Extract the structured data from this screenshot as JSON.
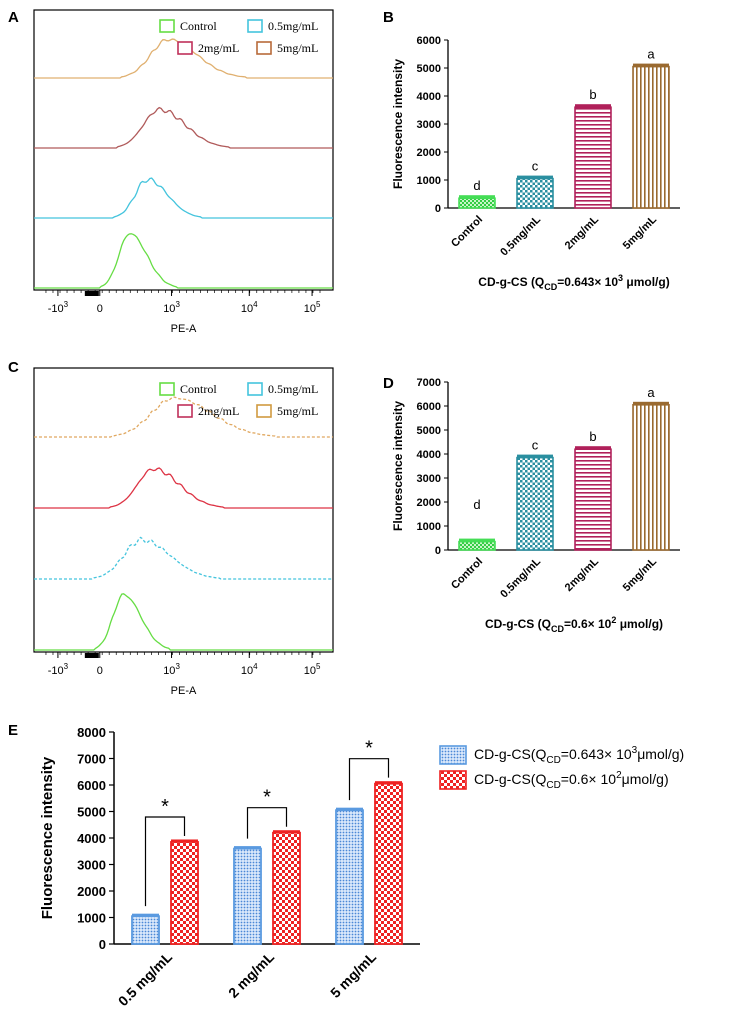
{
  "chart_data": [
    {
      "id": "A",
      "type": "histogram-overlay",
      "xlabel": "PE-A",
      "tick_labels": [
        "-10^3",
        "0",
        "10^3",
        "10^4",
        "10^5"
      ],
      "legend": [
        {
          "label": "Control",
          "color": "#66dd44"
        },
        {
          "label": "0.5mg/mL",
          "color": "#44c4dd"
        },
        {
          "label": "2mg/mL",
          "color": "#c0305a"
        },
        {
          "label": "5mg/mL",
          "color": "#b86a3a"
        }
      ],
      "traces": [
        {
          "name": "5mg/mL",
          "color": "#e0b070",
          "peak": 0.45,
          "width": 0.1
        },
        {
          "name": "2mg/mL",
          "color": "#b05a5a",
          "peak": 0.42,
          "width": 0.09
        },
        {
          "name": "0.5mg/mL",
          "color": "#44c4dd",
          "peak": 0.38,
          "width": 0.07
        },
        {
          "name": "Control",
          "color": "#66dd44",
          "peak": 0.32,
          "width": 0.06
        }
      ]
    },
    {
      "id": "B",
      "type": "bar",
      "ylabel": "Fluorescence intensity",
      "xlabel_main": "CD-g-CS (Q",
      "xlabel_sub": "CD",
      "xlabel_rest": "=0.643× 10",
      "xlabel_sup": "3",
      "xlabel_end": " μmol/g)",
      "categories": [
        "Control",
        "0.5mg/mL",
        "2mg/mL",
        "5mg/mL"
      ],
      "values": [
        350,
        1050,
        3600,
        5050
      ],
      "letters": [
        "d",
        "c",
        "b",
        "a"
      ],
      "colors": [
        "#44dd55",
        "#2a8fa0",
        "#b0205a",
        "#9a6a30"
      ],
      "ylim": [
        0,
        6000
      ],
      "yticks": [
        0,
        1000,
        2000,
        3000,
        4000,
        5000,
        6000
      ]
    },
    {
      "id": "C",
      "type": "histogram-overlay",
      "xlabel": "PE-A",
      "tick_labels": [
        "-10^3",
        "0",
        "10^3",
        "10^4",
        "10^5"
      ],
      "legend": [
        {
          "label": "Control",
          "color": "#66dd44"
        },
        {
          "label": "0.5mg/mL",
          "color": "#44c4dd"
        },
        {
          "label": "2mg/mL",
          "color": "#c0305a"
        },
        {
          "label": "5mg/mL",
          "color": "#d09a40"
        }
      ],
      "traces": [
        {
          "name": "5mg/mL",
          "color": "#e0a860",
          "peak": 0.47,
          "width": 0.13
        },
        {
          "name": "2mg/mL",
          "color": "#dd3344",
          "peak": 0.4,
          "width": 0.09
        },
        {
          "name": "0.5mg/mL",
          "color": "#44c4dd",
          "peak": 0.36,
          "width": 0.1
        },
        {
          "name": "Control",
          "color": "#66dd44",
          "peak": 0.3,
          "width": 0.06
        }
      ]
    },
    {
      "id": "D",
      "type": "bar",
      "ylabel": "Fluorescence intensity",
      "xlabel_main": "CD-g-CS (Q",
      "xlabel_sub": "CD",
      "xlabel_rest": "=0.6× 10",
      "xlabel_sup": "2",
      "xlabel_end": " μmol/g)",
      "categories": [
        "Control",
        "0.5mg/mL",
        "2mg/mL",
        "5mg/mL"
      ],
      "values": [
        350,
        3850,
        4200,
        6050
      ],
      "letters": [
        "d",
        "c",
        "b",
        "a"
      ],
      "colors": [
        "#44dd55",
        "#2a8fa0",
        "#b0205a",
        "#9a6a30"
      ],
      "ylim": [
        0,
        7000
      ],
      "yticks": [
        0,
        1000,
        2000,
        3000,
        4000,
        5000,
        6000,
        7000
      ]
    },
    {
      "id": "E",
      "type": "grouped-bar",
      "ylabel": "Fluorescence intensity",
      "categories": [
        "0.5 mg/mL",
        "2 mg/mL",
        "5 mg/mL"
      ],
      "ylim": [
        0,
        8000
      ],
      "yticks": [
        0,
        1000,
        2000,
        3000,
        4000,
        5000,
        6000,
        7000,
        8000
      ],
      "significance": [
        "*",
        "*",
        "*"
      ],
      "series": [
        {
          "name_main": "CD-g-CS(Q",
          "name_sub": "CD",
          "name_rest": "=0.643× 10",
          "name_sup": "3",
          "name_end": "μmol/g)",
          "color": "#5a9ae0",
          "values": [
            1050,
            3600,
            5050
          ]
        },
        {
          "name_main": "CD-g-CS(Q",
          "name_sub": "CD",
          "name_rest": "=0.6× 10",
          "name_sup": "2",
          "name_end": "μmol/g)",
          "color": "#ee2222",
          "values": [
            3850,
            4200,
            6050
          ]
        }
      ]
    }
  ]
}
